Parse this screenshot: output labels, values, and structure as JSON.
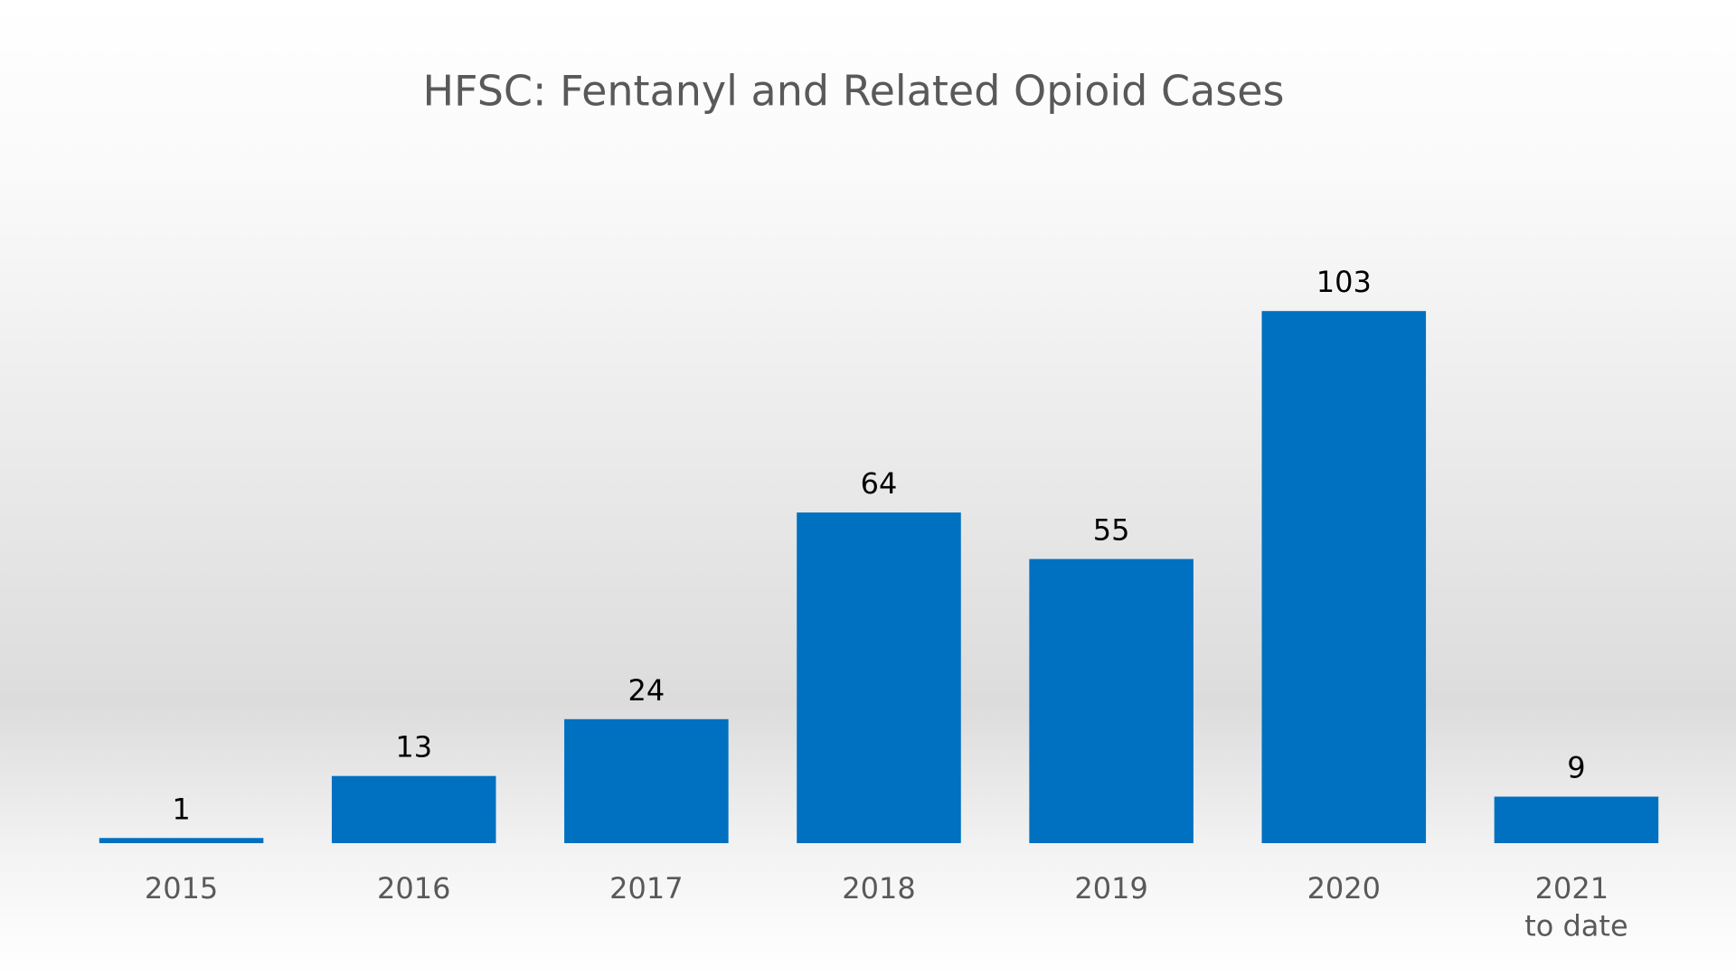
{
  "chart_data": {
    "type": "bar",
    "title": "HFSC: Fentanyl and Related Opioid Cases",
    "categories": [
      "2015",
      "2016",
      "2017",
      "2018",
      "2019",
      "2020",
      "2021\nto date"
    ],
    "values": [
      1,
      13,
      24,
      64,
      55,
      103,
      9
    ],
    "color": "#0070c0",
    "ylim": [
      0,
      120
    ]
  }
}
